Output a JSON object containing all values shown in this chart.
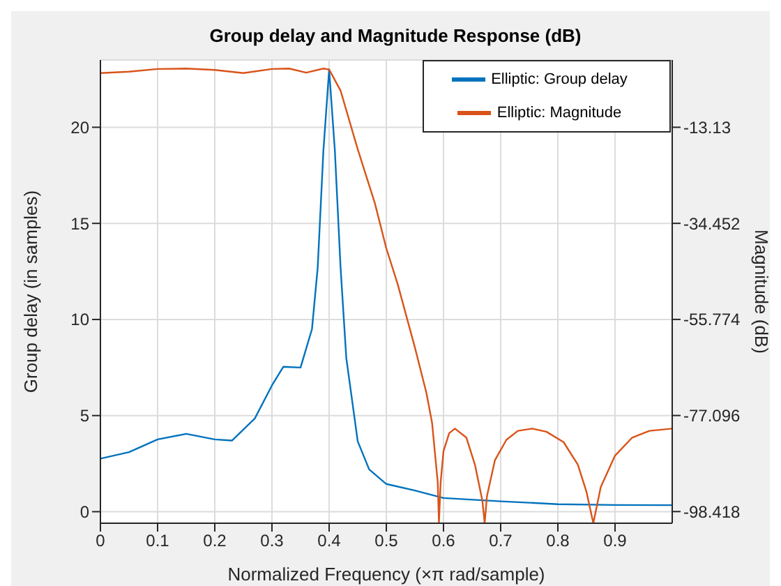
{
  "chart_data": {
    "type": "line",
    "title": "Group delay and Magnitude Response (dB)",
    "xlabel": "Normalized Frequency (×π rad/sample)",
    "ylabel": "Group delay (in samples)",
    "y2label": "Magnitude (dB)",
    "xlim": [
      0,
      1
    ],
    "xticks": [
      0,
      0.1,
      0.2,
      0.3,
      0.4,
      0.5,
      0.6,
      0.7,
      0.8,
      0.9
    ],
    "ylim": [
      -0.6,
      23.5
    ],
    "yticks": [
      0,
      5,
      10,
      15,
      20
    ],
    "y2lim": [
      -101,
      1.8
    ],
    "y2ticks": [
      -98.418,
      -77.096,
      -55.774,
      -34.452,
      -13.13
    ],
    "grid": true,
    "legend": "top right",
    "marker": "none",
    "line_style": "solid",
    "series": [
      {
        "name": "Elliptic: Group delay",
        "color": "#0072bd",
        "x": [
          0,
          0.05,
          0.1,
          0.15,
          0.2,
          0.23,
          0.27,
          0.3,
          0.32,
          0.35,
          0.37,
          0.38,
          0.39,
          0.4,
          0.41,
          0.42,
          0.43,
          0.45,
          0.47,
          0.5,
          0.55,
          0.6,
          0.7,
          0.8,
          0.9,
          1
        ],
        "values": [
          2.76,
          3.1,
          3.76,
          4.05,
          3.76,
          3.7,
          4.85,
          6.57,
          7.54,
          7.5,
          9.5,
          12.7,
          18.8,
          23,
          18.8,
          12.7,
          8,
          3.66,
          2.2,
          1.44,
          1.1,
          0.71,
          0.54,
          0.39,
          0.35,
          0.34
        ]
      },
      {
        "name": "Elliptic: Magnitude",
        "color": "#d95319",
        "axis": "y2",
        "x": [
          0,
          0.05,
          0.1,
          0.15,
          0.2,
          0.25,
          0.3,
          0.33,
          0.36,
          0.39,
          0.4,
          0.42,
          0.45,
          0.48,
          0.5,
          0.52,
          0.55,
          0.57,
          0.58,
          0.59,
          0.592,
          0.595,
          0.6,
          0.61,
          0.62,
          0.64,
          0.655,
          0.668,
          0.672,
          0.676,
          0.69,
          0.71,
          0.73,
          0.755,
          0.78,
          0.81,
          0.835,
          0.85,
          0.862,
          0.875,
          0.9,
          0.93,
          0.96,
          1
        ],
        "values": [
          -1.1,
          -0.8,
          -0.2,
          -0.1,
          -0.4,
          -1.1,
          -0.2,
          -0.1,
          -1,
          -0.1,
          -0.3,
          -5,
          -18,
          -30,
          -40,
          -48,
          -62,
          -72,
          -78.7,
          -92,
          -101,
          -92,
          -85,
          -81,
          -80,
          -82,
          -88,
          -96,
          -101,
          -95,
          -87,
          -82.5,
          -80.5,
          -80,
          -80.7,
          -83,
          -88,
          -94,
          -101,
          -93,
          -86,
          -82,
          -80.5,
          -80
        ]
      }
    ]
  }
}
